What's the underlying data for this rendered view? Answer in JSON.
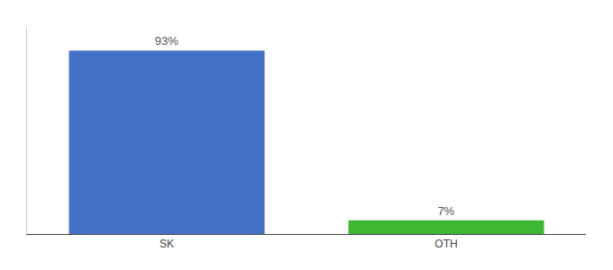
{
  "chart_data": {
    "type": "bar",
    "categories": [
      "SK",
      "OTH"
    ],
    "values": [
      93,
      7
    ],
    "value_labels": [
      "93%",
      "7%"
    ],
    "colors": [
      "#4472c4",
      "#3cb832"
    ],
    "ylim": [
      0,
      105
    ],
    "data_labels": true,
    "tick_labels": "x",
    "grid": false
  }
}
